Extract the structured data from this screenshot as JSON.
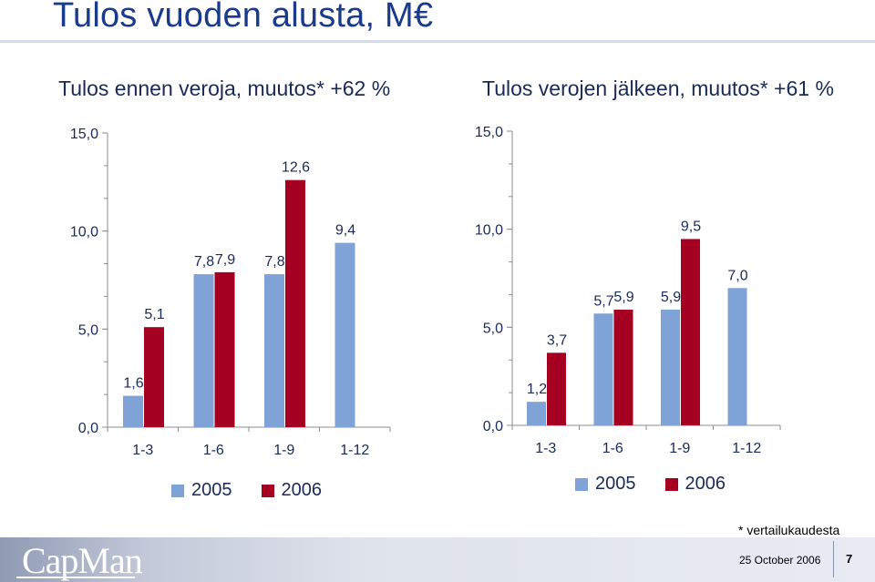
{
  "page": {
    "title": "Tulos vuoden alusta, M€",
    "footnote": "* vertailukaudesta",
    "footer_date": "25 October 2006",
    "page_number": "7",
    "logo": "CapMan"
  },
  "colors": {
    "series_2005": "#7fa3d6",
    "series_2006": "#a50021",
    "axis": "#8c8c8c",
    "text": "#1a2a57",
    "title": "#1a3a8c"
  },
  "chart_data": [
    {
      "type": "bar",
      "title": "Tulos ennen veroja, muutos* +62 %",
      "categories": [
        "1-3",
        "1-6",
        "1-9",
        "1-12"
      ],
      "series": [
        {
          "name": "2005",
          "values": [
            1.6,
            7.8,
            7.8,
            9.4
          ],
          "labels": [
            "1,6",
            "7,8",
            "7,8",
            "9,4"
          ]
        },
        {
          "name": "2006",
          "values": [
            5.1,
            7.9,
            12.6,
            null
          ],
          "labels": [
            "5,1",
            "7,9",
            "12,6",
            ""
          ]
        }
      ],
      "ylim": [
        0,
        15
      ],
      "yticks": [
        "0,0",
        "5,0",
        "10,0",
        "15,0"
      ],
      "legend": "bottom",
      "grid": false
    },
    {
      "type": "bar",
      "title": "Tulos verojen jälkeen, muutos* +61 %",
      "categories": [
        "1-3",
        "1-6",
        "1-9",
        "1-12"
      ],
      "series": [
        {
          "name": "2005",
          "values": [
            1.2,
            5.7,
            5.9,
            7.0
          ],
          "labels": [
            "1,2",
            "5,7",
            "5,9",
            "7,0"
          ]
        },
        {
          "name": "2006",
          "values": [
            3.7,
            5.9,
            9.5,
            null
          ],
          "labels": [
            "3,7",
            "5,9",
            "9,5",
            ""
          ]
        }
      ],
      "ylim": [
        0,
        15
      ],
      "yticks": [
        "0,0",
        "5,0",
        "10,0",
        "15,0"
      ],
      "legend": "bottom",
      "grid": false
    }
  ]
}
